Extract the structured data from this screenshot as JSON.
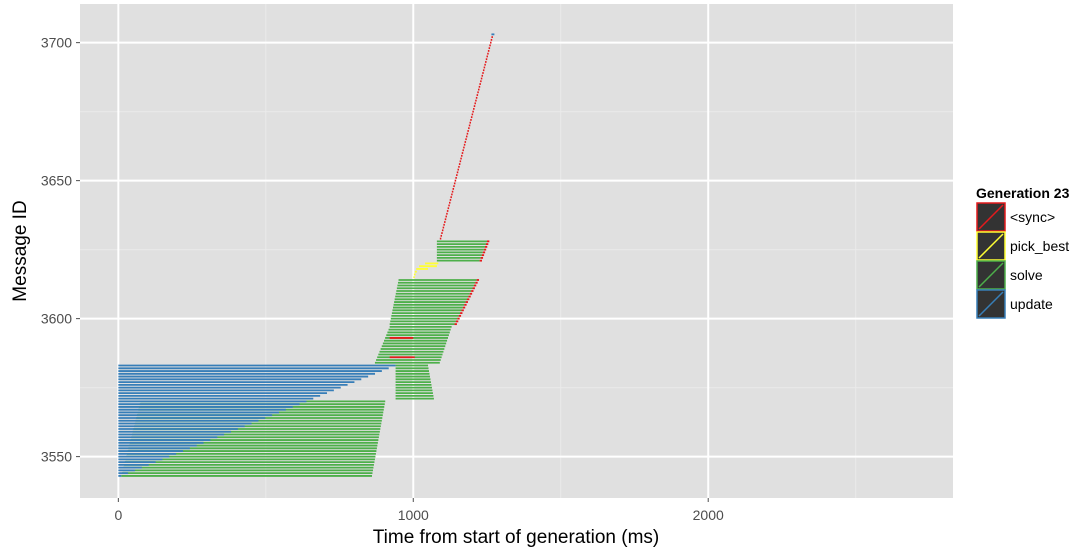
{
  "chart_data": {
    "type": "timeline",
    "xlabel": "Time from start of generation (ms)",
    "ylabel": "Message ID",
    "xlim": [
      -130,
      2830
    ],
    "ylim": [
      3535,
      3714
    ],
    "x_ticks": [
      0,
      1000,
      2000
    ],
    "y_ticks": [
      3550,
      3600,
      3650,
      3700
    ],
    "grid": true,
    "legend": {
      "title": "Generation 23",
      "placement": "right",
      "entries": [
        "<sync>",
        "pick_best",
        "solve",
        "update"
      ]
    },
    "colors": {
      "<sync>": "#e41a1c",
      "pick_best": "#ffff33",
      "solve": "#4daf4a",
      "update": "#377eb8",
      "panel": "#e0e0e0",
      "legend_key_bg": "#333333"
    },
    "segment_groups": [
      {
        "task": "update",
        "id_from": 3543,
        "id_to": 3583,
        "start_from": 0,
        "start_to": 0,
        "end_from": 10,
        "end_to": 940
      },
      {
        "task": "solve",
        "id_from": 3543,
        "id_to": 3570,
        "start_from": 10,
        "start_to": 75,
        "end_from": 860,
        "end_to": 905
      },
      {
        "task": "solve",
        "id_from": 3571,
        "id_to": 3583,
        "start_from": 940,
        "start_to": 940,
        "end_from": 1070,
        "end_to": 1050
      },
      {
        "task": "solve",
        "id_from": 3584,
        "id_to": 3597,
        "start_from": 870,
        "start_to": 920,
        "end_from": 1090,
        "end_to": 1130
      },
      {
        "task": "solve",
        "id_from": 3598,
        "id_to": 3614,
        "start_from": 920,
        "start_to": 950,
        "end_from": 1140,
        "end_to": 1215
      },
      {
        "task": "solve",
        "id_from": 3621,
        "id_to": 3628,
        "start_from": 1080,
        "start_to": 1080,
        "end_from": 1225,
        "end_to": 1250
      },
      {
        "task": "<sync>",
        "id_from": 3598,
        "id_to": 3614,
        "start_from": 1140,
        "start_to": 1215,
        "end_from": 1148,
        "end_to": 1223
      },
      {
        "task": "<sync>",
        "id_from": 3621,
        "id_to": 3628,
        "start_from": 1225,
        "start_to": 1250,
        "end_from": 1233,
        "end_to": 1258
      },
      {
        "task": "<sync>",
        "id_from": 3629,
        "id_to": 3702,
        "start_from": 1090,
        "start_to": 1265,
        "end_from": 1095,
        "end_to": 1270
      }
    ],
    "single_segments": [
      {
        "task": "<sync>",
        "id": 3586,
        "start": 920,
        "end": 1005
      },
      {
        "task": "<sync>",
        "id": 3593,
        "start": 920,
        "end": 1000
      },
      {
        "task": "pick_best",
        "id": 3615,
        "start": 1000,
        "end": 1005
      },
      {
        "task": "pick_best",
        "id": 3616,
        "start": 1002,
        "end": 1008
      },
      {
        "task": "pick_best",
        "id": 3617,
        "start": 1005,
        "end": 1012
      },
      {
        "task": "pick_best",
        "id": 3618,
        "start": 1010,
        "end": 1050
      },
      {
        "task": "pick_best",
        "id": 3619,
        "start": 1020,
        "end": 1080
      },
      {
        "task": "pick_best",
        "id": 3620,
        "start": 1040,
        "end": 1085
      },
      {
        "task": "update",
        "id": 3703,
        "start": 1265,
        "end": 1275
      }
    ]
  }
}
